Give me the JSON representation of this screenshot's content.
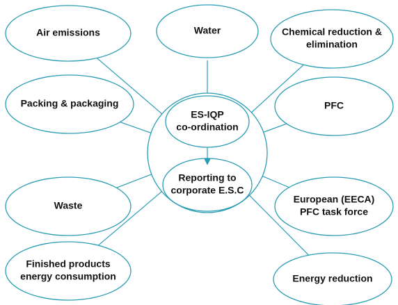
{
  "center": {
    "top": [
      "ES-IQP",
      "co-ordination"
    ],
    "bottom": [
      "Reporting to",
      "corporate E.S.C"
    ]
  },
  "nodes": [
    {
      "label": [
        "Air emissions"
      ]
    },
    {
      "label": [
        "Water"
      ]
    },
    {
      "label": [
        "Chemical reduction &",
        "elimination"
      ]
    },
    {
      "label": [
        "Packing & packaging"
      ]
    },
    {
      "label": [
        "PFC"
      ]
    },
    {
      "label": [
        "Waste"
      ]
    },
    {
      "label": [
        "European (EECA)",
        "PFC task force"
      ]
    },
    {
      "label": [
        "Finished products",
        "energy consumption"
      ]
    },
    {
      "label": [
        "Energy reduction"
      ]
    }
  ]
}
